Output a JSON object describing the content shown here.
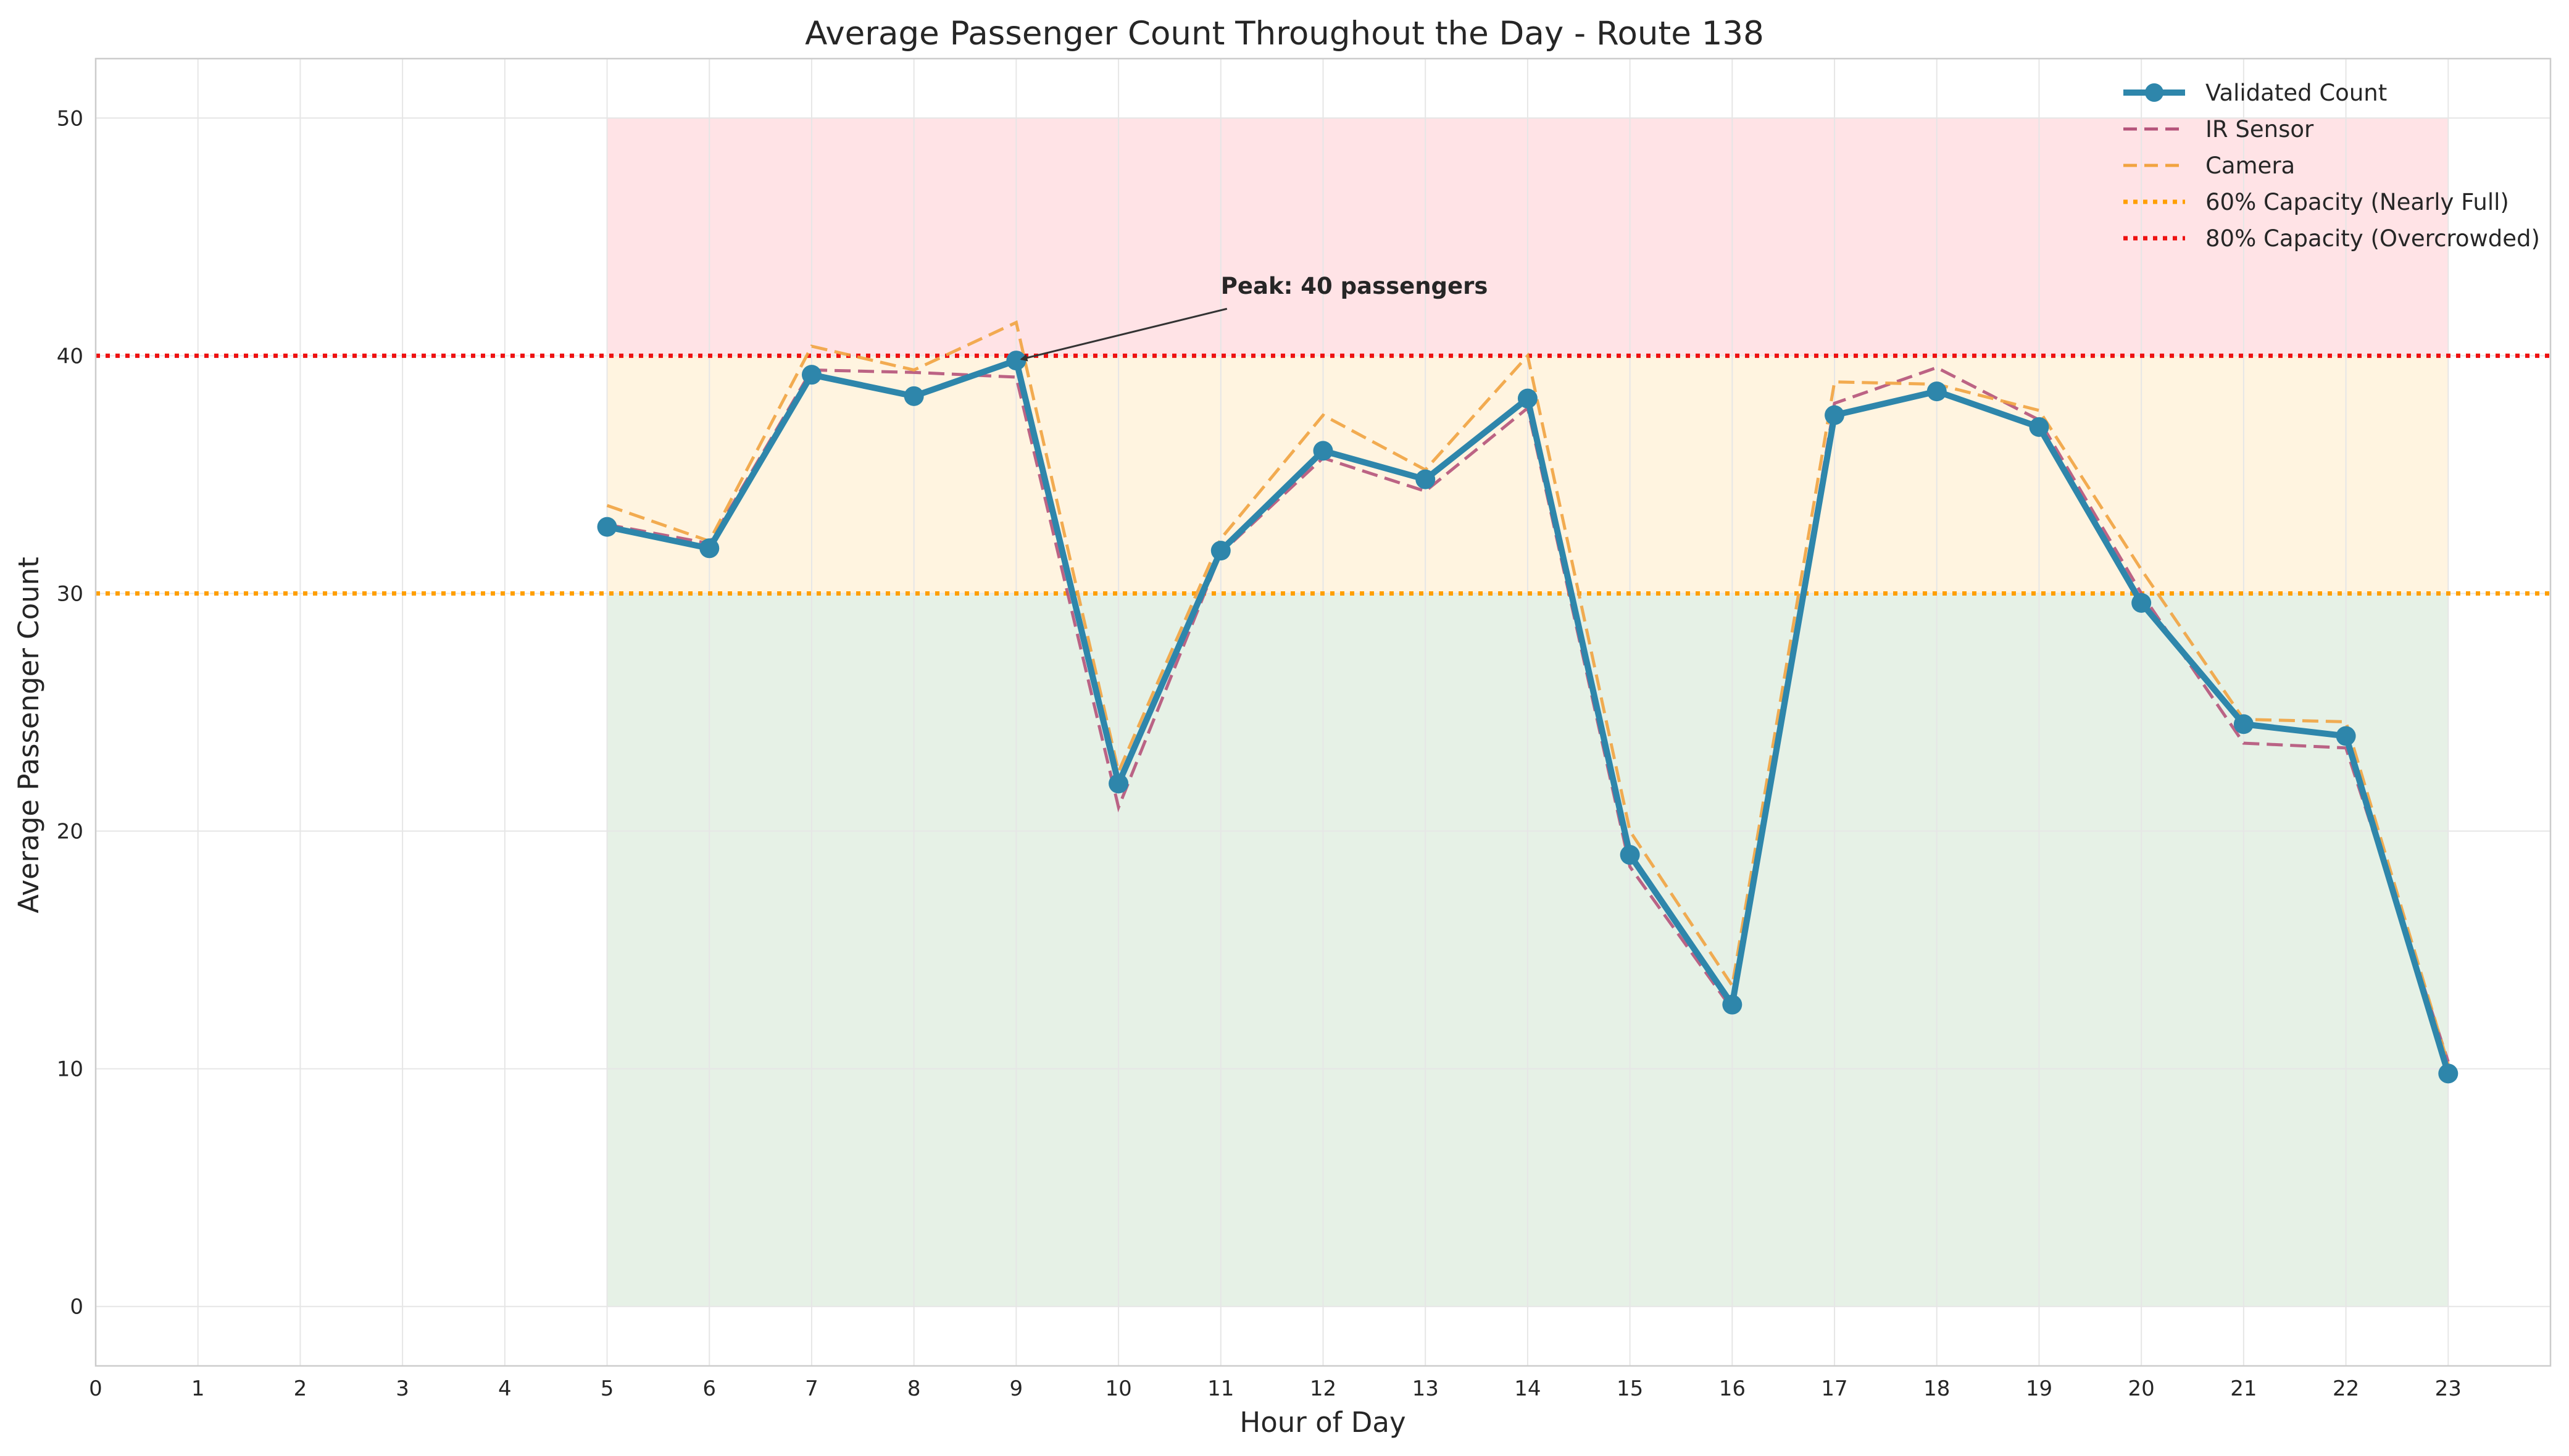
{
  "chart_data": {
    "type": "line",
    "title": "Average Passenger Count Throughout the Day - Route 138",
    "xlabel": "Hour of Day",
    "ylabel": "Average Passenger Count",
    "xlim": [
      0,
      24
    ],
    "ylim": [
      -2.5,
      52.5
    ],
    "x_ticks": [
      0,
      1,
      2,
      3,
      4,
      5,
      6,
      7,
      8,
      9,
      10,
      11,
      12,
      13,
      14,
      15,
      16,
      17,
      18,
      19,
      20,
      21,
      22,
      23
    ],
    "y_ticks": [
      0,
      10,
      20,
      30,
      40,
      50
    ],
    "grid": true,
    "legend_position": "top-right",
    "x": [
      5,
      6,
      7,
      8,
      9,
      10,
      11,
      12,
      13,
      14,
      15,
      16,
      17,
      18,
      19,
      20,
      21,
      22,
      23
    ],
    "series": [
      {
        "name": "Validated Count",
        "color": "#2e86ab",
        "style": "solid-markers",
        "values": [
          32.8,
          31.9,
          39.2,
          38.3,
          39.8,
          22.0,
          31.8,
          36.0,
          34.8,
          38.2,
          19.0,
          12.7,
          37.5,
          38.5,
          37.0,
          29.6,
          24.5,
          24.0,
          9.8
        ]
      },
      {
        "name": "IR Sensor",
        "color": "#b5537a",
        "style": "dashed",
        "values": [
          32.9,
          32.1,
          39.4,
          39.3,
          39.1,
          21.0,
          31.7,
          35.7,
          34.3,
          37.8,
          18.5,
          12.5,
          38.0,
          39.5,
          37.3,
          30.0,
          23.7,
          23.5,
          10.3
        ]
      },
      {
        "name": "Camera",
        "color": "#f1a340",
        "style": "dashed",
        "values": [
          33.7,
          32.2,
          40.4,
          39.4,
          41.4,
          22.5,
          32.3,
          37.5,
          35.2,
          40.0,
          20.0,
          13.5,
          38.9,
          38.8,
          37.7,
          31.0,
          24.7,
          24.6,
          10.2
        ]
      }
    ],
    "thresholds": [
      {
        "name": "60% Capacity (Nearly Full)",
        "value": 30,
        "color": "#ff9f00"
      },
      {
        "name": "80% Capacity (Overcrowded)",
        "value": 40,
        "color": "#ee1111"
      }
    ],
    "zones": [
      {
        "from": 0,
        "to": 30,
        "x_from": 5,
        "x_to": 23,
        "color": "#2e8b2e",
        "opacity": 0.12
      },
      {
        "from": 30,
        "to": 40,
        "x_from": 5,
        "x_to": 23,
        "color": "#ffa500",
        "opacity": 0.12
      },
      {
        "from": 40,
        "to": 50,
        "x_from": 5,
        "x_to": 23,
        "color": "#ff4455",
        "opacity": 0.15
      }
    ],
    "annotation": {
      "text": "Peak: 40 passengers",
      "point": [
        9,
        39.8
      ],
      "text_position": [
        11,
        42.6
      ]
    }
  }
}
